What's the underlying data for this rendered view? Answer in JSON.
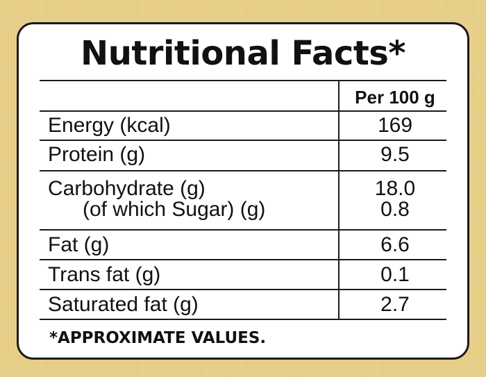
{
  "title": "Nutritional Facts*",
  "header": {
    "column_label": "Per 100 g"
  },
  "rows": [
    {
      "label": "Energy (kcal)",
      "value": "169"
    },
    {
      "label": "Protein (g)",
      "value": "9.5"
    },
    {
      "label": "Carbohydrate (g)",
      "value": "18.0",
      "sublabel": "(of which Sugar) (g)",
      "subvalue": "0.8"
    },
    {
      "label": "Fat (g)",
      "value": "6.6"
    },
    {
      "label": "Trans fat (g)",
      "value": "0.1"
    },
    {
      "label": "Saturated fat (g)",
      "value": "2.7"
    }
  ],
  "footnote": "*APPROXIMATE VALUES.",
  "colors": {
    "background": "#e8cf86",
    "panel": "#ffffff",
    "ink": "#111111"
  }
}
